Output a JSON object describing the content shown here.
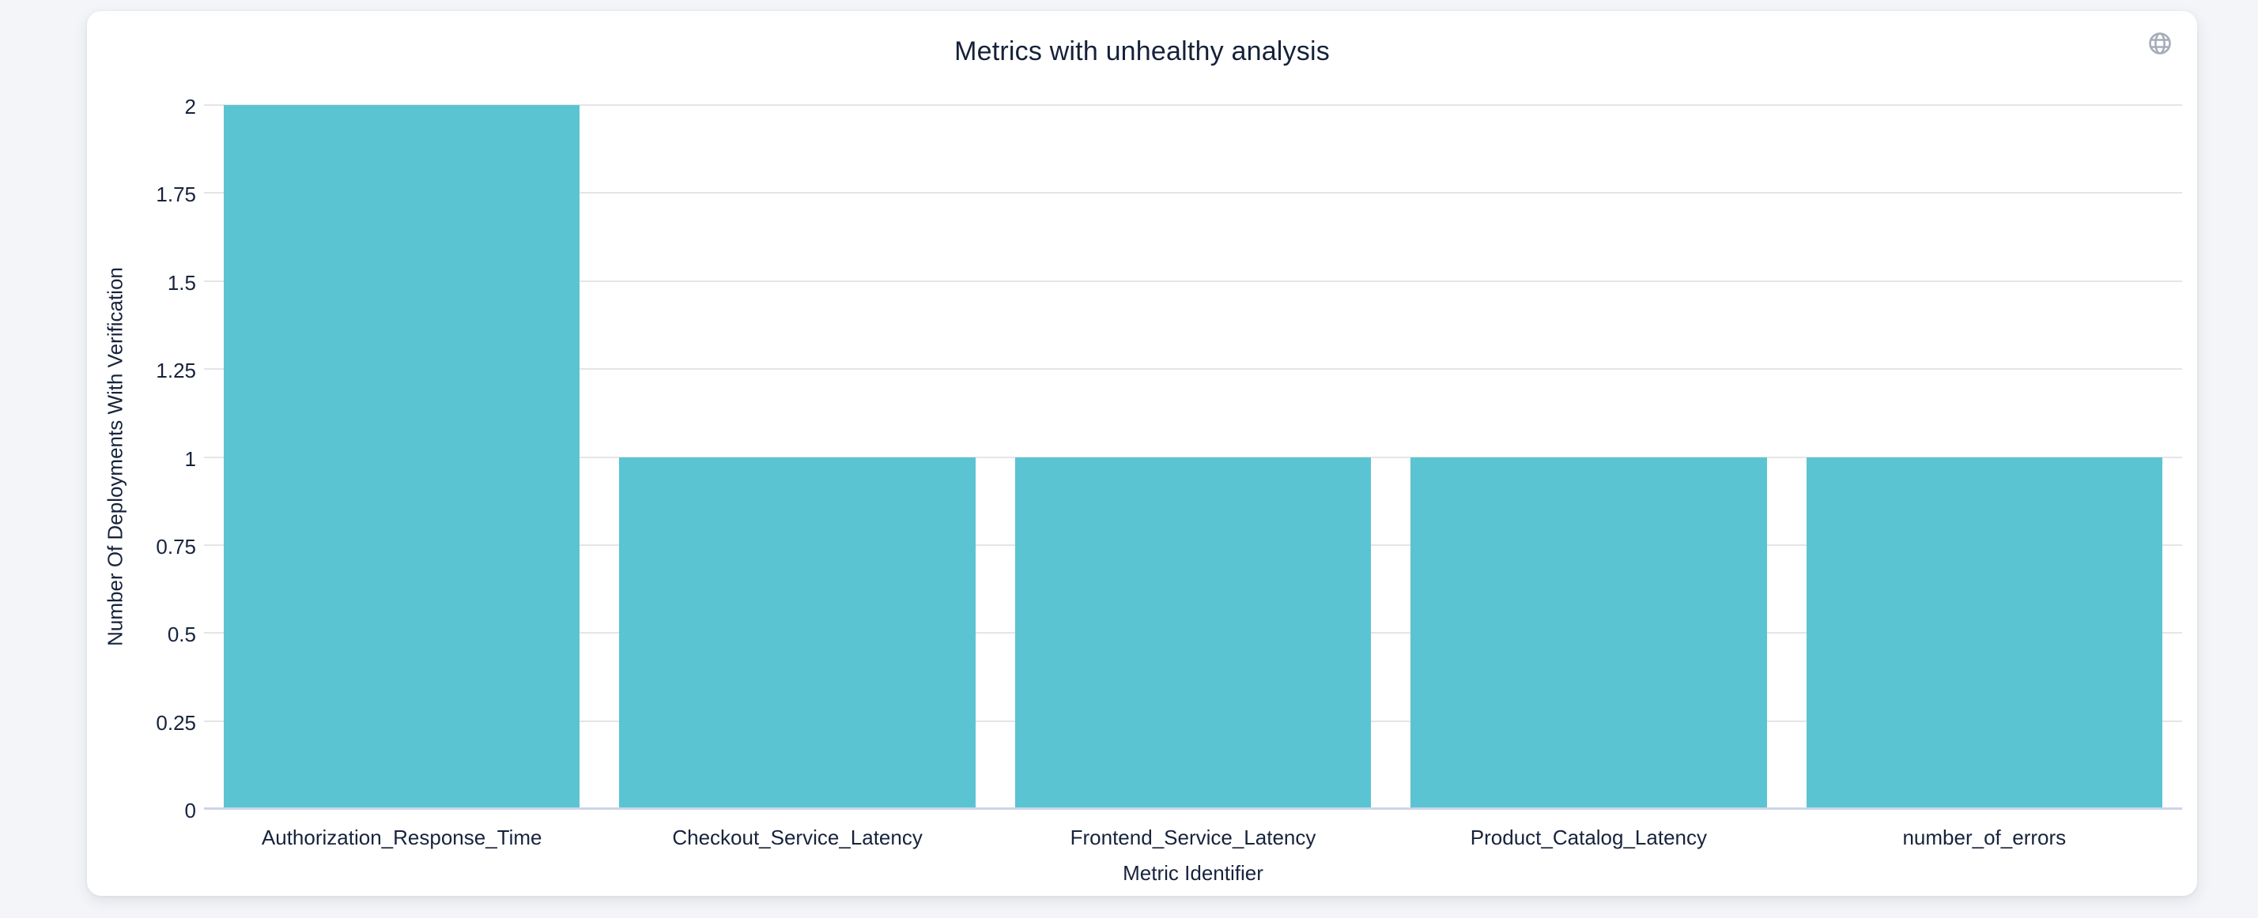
{
  "page": {
    "background_color": "#f3f5f8",
    "card_color": "#ffffff"
  },
  "header": {
    "title": "Metrics with unhealthy analysis",
    "globe_icon": "globe-icon",
    "globe_icon_color": "#a6acb8"
  },
  "chart_data": {
    "type": "bar",
    "title": "Metrics with unhealthy analysis",
    "categories": [
      "Authorization_Response_Time",
      "Checkout_Service_Latency",
      "Frontend_Service_Latency",
      "Product_Catalog_Latency",
      "number_of_errors"
    ],
    "values": [
      2,
      1,
      1,
      1,
      1
    ],
    "xlabel": "Metric Identifier",
    "ylabel": "Number Of Deployments With Verification",
    "ylim": [
      0,
      2
    ],
    "ytick_step": 0.25,
    "ytick_labels": [
      "0",
      "0.25",
      "0.5",
      "0.75",
      "1",
      "1.25",
      "1.5",
      "1.75",
      "2"
    ],
    "grid": true,
    "legend": "none",
    "bar_color": "#5ac4d2",
    "grid_color": "#e5e5e7",
    "baseline_color": "#ccd5e8",
    "text_color": "#17233c"
  }
}
